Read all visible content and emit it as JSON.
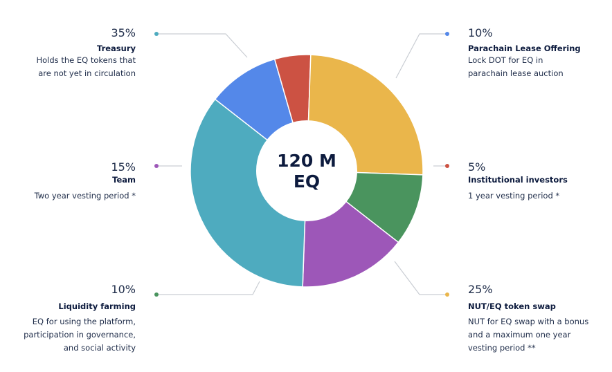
{
  "center": {
    "line1": "120 M",
    "line2": "EQ"
  },
  "chart_data": {
    "type": "pie",
    "variant": "donut",
    "total_label": "120 M EQ",
    "legend": "callout labels around the chart",
    "slices": [
      {
        "name": "Parachain Lease Offering",
        "value": 10,
        "pct": "10%",
        "color": "#5488e9",
        "desc_lines": [
          "Lock DOT for EQ in",
          "parachain lease auction"
        ]
      },
      {
        "name": "Institutional investors",
        "value": 5,
        "pct": "5%",
        "color": "#cc5243",
        "desc_lines": [
          "1 year vesting period *"
        ]
      },
      {
        "name": "NUT/EQ token swap",
        "value": 25,
        "pct": "25%",
        "color": "#eab64b",
        "desc_lines": [
          "NUT for EQ swap with a bonus",
          "and a maximum one year",
          "vesting period **"
        ]
      },
      {
        "name": "Liquidity farming",
        "value": 10,
        "pct": "10%",
        "color": "#4a945e",
        "desc_lines": [
          "EQ for using the platform,",
          "participation in governance,",
          "and social activity"
        ]
      },
      {
        "name": "Team",
        "value": 15,
        "pct": "15%",
        "color": "#9d57b8",
        "desc_lines": [
          "Two year vesting period *"
        ]
      },
      {
        "name": "Treasury",
        "value": 35,
        "pct": "35%",
        "color": "#4eabbf",
        "desc_lines": [
          "Holds the EQ tokens that",
          "are not yet in circulation"
        ]
      }
    ]
  },
  "labels": {
    "treasury": {
      "pct": "35%",
      "name": "Treasury",
      "desc": [
        "Holds the EQ tokens that",
        "are not yet in circulation"
      ]
    },
    "team": {
      "pct": "15%",
      "name": "Team",
      "desc": [
        "Two year vesting period *"
      ]
    },
    "liquidity": {
      "pct": "10%",
      "name": "Liquidity farming",
      "desc": [
        "EQ for using the platform,",
        "participation in governance,",
        "and social activity"
      ]
    },
    "parachain": {
      "pct": "10%",
      "name": "Parachain Lease Offering",
      "desc": [
        "Lock DOT for EQ in",
        "parachain lease auction"
      ]
    },
    "institutional": {
      "pct": "5%",
      "name": "Institutional investors",
      "desc": [
        "1 year vesting period *"
      ]
    },
    "swap": {
      "pct": "25%",
      "name": "NUT/EQ token swap",
      "desc": [
        "NUT for EQ swap with a bonus",
        "and a maximum one year",
        "vesting period **"
      ]
    }
  }
}
